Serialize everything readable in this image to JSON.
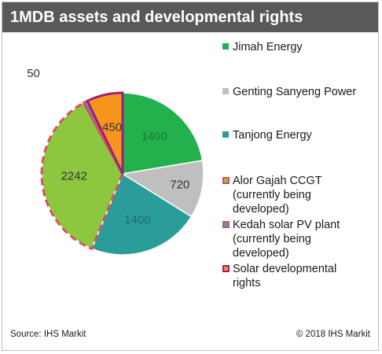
{
  "title": "1MDB assets and developmental rights",
  "footer": {
    "source": "Source: IHS Markit",
    "copyright": "© 2018 IHS Markit"
  },
  "colors": {
    "title_bg": "#595959",
    "jimah": "#22b14c",
    "genting": "#bfbfbf",
    "tanjong": "#2a9d9a",
    "alor": "#8dc63f",
    "alor_outline": "#d9505f",
    "kedah": "#3ba4d8",
    "kedah_outline": "#d9505f",
    "solar": "#f7941d",
    "solar_outline": "#9b1f7c"
  },
  "chart_data": {
    "type": "pie",
    "title": "1MDB assets and developmental rights",
    "series": [
      {
        "name": "Jimah Energy",
        "value": 1400,
        "label": "1400",
        "color": "#22b14c",
        "marker": "square"
      },
      {
        "name": "Genting Sanyeng Power",
        "value": 720,
        "label": "720",
        "color": "#bfbfbf",
        "marker": "square"
      },
      {
        "name": "Tanjong Energy",
        "value": 1400,
        "label": "1400",
        "color": "#2a9d9a",
        "marker": "square"
      },
      {
        "name": "Alor Gajah CCGT (currently being developed)",
        "value": 2242,
        "label": "2242",
        "color": "#8dc63f",
        "marker": "outlined",
        "outline": "#d9505f",
        "dashed": true
      },
      {
        "name": "Kedah solar PV plant (currently being developed)",
        "value": 50,
        "label": "50",
        "color": "#3ba4d8",
        "marker": "outlined",
        "outline": "#d9505f",
        "dashed": true
      },
      {
        "name": "Solar developmental rights",
        "value": 450,
        "label": "450",
        "color": "#f7941d",
        "marker": "outlined",
        "outline": "#9b1f7c",
        "dashed": false
      }
    ],
    "legend": [
      {
        "lines": [
          "Jimah Energy"
        ]
      },
      {
        "lines": [
          "Genting Sanyeng Power"
        ]
      },
      {
        "lines": [
          "Tanjong Energy"
        ]
      },
      {
        "lines": [
          "Alor Gajah CCGT",
          "(currently being",
          "developed)"
        ]
      },
      {
        "lines": [
          "Kedah solar PV plant",
          "(currently being",
          "developed)"
        ]
      },
      {
        "lines": [
          "Solar developmental",
          "rights"
        ]
      }
    ],
    "legend_position": "right"
  }
}
